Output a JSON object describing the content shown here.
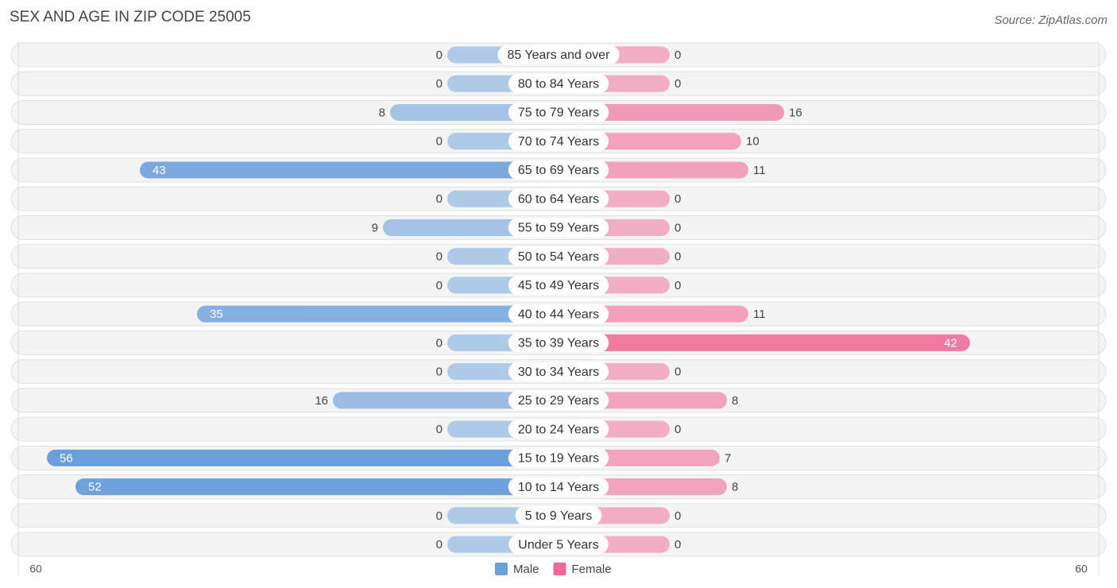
{
  "chart_data": {
    "type": "diverging-bar",
    "title": "SEX AND AGE IN ZIP CODE 25005",
    "source": "Source: ZipAtlas.com",
    "categories": [
      "85 Years and over",
      "80 to 84 Years",
      "75 to 79 Years",
      "70 to 74 Years",
      "65 to 69 Years",
      "60 to 64 Years",
      "55 to 59 Years",
      "50 to 54 Years",
      "45 to 49 Years",
      "40 to 44 Years",
      "35 to 39 Years",
      "30 to 34 Years",
      "25 to 29 Years",
      "20 to 24 Years",
      "15 to 19 Years",
      "10 to 14 Years",
      "5 to 9 Years",
      "Under 5 Years"
    ],
    "series": [
      {
        "name": "Male",
        "color": "#6a9fdc",
        "values": [
          0,
          0,
          8,
          0,
          43,
          0,
          9,
          0,
          0,
          35,
          0,
          0,
          16,
          0,
          56,
          52,
          0,
          0
        ]
      },
      {
        "name": "Female",
        "color": "#f06895",
        "values": [
          0,
          0,
          16,
          10,
          11,
          0,
          0,
          0,
          0,
          11,
          42,
          0,
          8,
          0,
          7,
          8,
          0,
          0
        ]
      }
    ],
    "xlim": [
      0,
      60
    ],
    "xticks": [
      60
    ]
  }
}
